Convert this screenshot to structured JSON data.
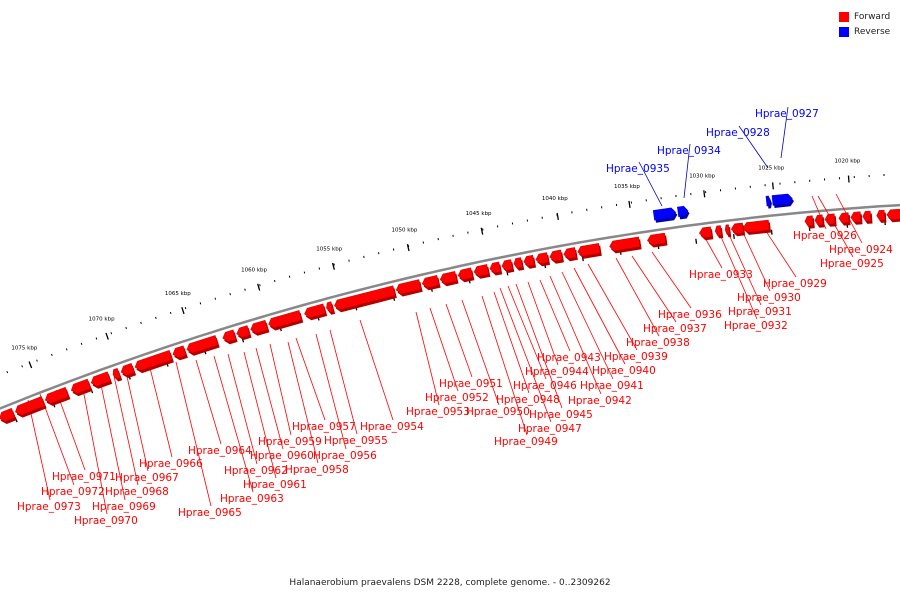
{
  "colors": {
    "forward": "#ff0000",
    "forward_shadow": "#b00000",
    "reverse": "#0000ff",
    "reverse_shadow": "#0000aa",
    "backbone": "#888888",
    "leader_forward": "#ff0000",
    "leader_reverse": "#0000c0",
    "tick": "#000000"
  },
  "legend": [
    {
      "label": "Forward",
      "color": "#ff0000"
    },
    {
      "label": "Reverse",
      "color": "#0000ff"
    }
  ],
  "caption": "Halanaerobium praevalens DSM 2228, complete genome. - 0..2309262",
  "scale_labels": [
    "1020 kbp",
    "1025 kbp",
    "1030 kbp",
    "1035 kbp",
    "1040 kbp",
    "1045 kbp",
    "1050 kbp",
    "1055 kbp",
    "1060 kbp",
    "1065 kbp",
    "1070 kbp",
    "1075 kbp"
  ],
  "forward_genes": [
    "Hprae_0924",
    "Hprae_0925",
    "Hprae_0926",
    "Hprae_0929",
    "Hprae_0930",
    "Hprae_0931",
    "Hprae_0932",
    "Hprae_0933",
    "Hprae_0936",
    "Hprae_0937",
    "Hprae_0938",
    "Hprae_0939",
    "Hprae_0940",
    "Hprae_0941",
    "Hprae_0942",
    "Hprae_0943",
    "Hprae_0944",
    "Hprae_0945",
    "Hprae_0946",
    "Hprae_0947",
    "Hprae_0948",
    "Hprae_0949",
    "Hprae_0950",
    "Hprae_0951",
    "Hprae_0952",
    "Hprae_0953",
    "Hprae_0954",
    "Hprae_0955",
    "Hprae_0956",
    "Hprae_0957",
    "Hprae_0958",
    "Hprae_0959",
    "Hprae_0960",
    "Hprae_0961",
    "Hprae_0962",
    "Hprae_0963",
    "Hprae_0964",
    "Hprae_0965",
    "Hprae_0966",
    "Hprae_0967",
    "Hprae_0968",
    "Hprae_0969",
    "Hprae_0970",
    "Hprae_0971",
    "Hprae_0972",
    "Hprae_0973"
  ],
  "reverse_genes": [
    "Hprae_0927",
    "Hprae_0928",
    "Hprae_0934",
    "Hprae_0935"
  ]
}
